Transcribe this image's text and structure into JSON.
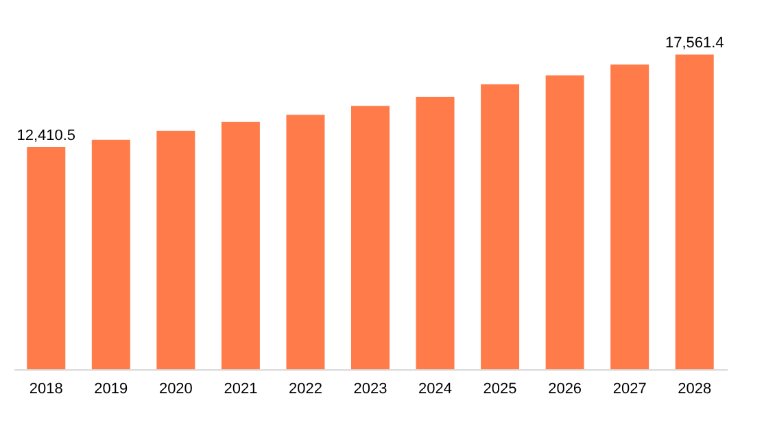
{
  "chart_data": {
    "type": "bar",
    "categories": [
      "2018",
      "2019",
      "2020",
      "2021",
      "2022",
      "2023",
      "2024",
      "2025",
      "2026",
      "2027",
      "2028"
    ],
    "values": [
      12410.5,
      12800,
      13300,
      13800,
      14200,
      14700,
      15200,
      15900,
      16400,
      17000,
      17561.4
    ],
    "value_labels": [
      "12,410.5",
      null,
      null,
      null,
      null,
      null,
      null,
      null,
      null,
      null,
      "17,561.4"
    ],
    "color": "#ff7c4a",
    "tick_labels": "x",
    "grid": false
  }
}
